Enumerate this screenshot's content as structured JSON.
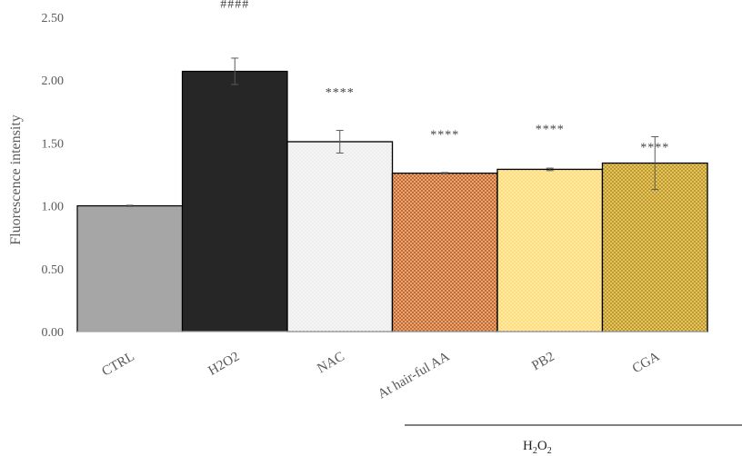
{
  "chart_data": {
    "type": "bar",
    "title": "",
    "xlabel": "",
    "ylabel": "Fluorescence intensity",
    "ylim": [
      0,
      2.5
    ],
    "yticks": [
      "0.00",
      "0.50",
      "1.00",
      "1.50",
      "2.00",
      "2.50"
    ],
    "categories": [
      "CTRL",
      "H2O2",
      "NAC",
      "At hair-ful AA",
      "PB2",
      "CGA"
    ],
    "values": [
      1.0,
      2.07,
      1.51,
      1.26,
      1.29,
      1.34
    ],
    "errors": [
      0.005,
      0.105,
      0.09,
      0.005,
      0.01,
      0.21
    ],
    "significance": [
      "",
      "####",
      "****",
      "****",
      "****",
      "****"
    ],
    "colors": [
      "#a6a6a6",
      "#262626",
      "#ececec",
      "#c55a11",
      "#ffd966",
      "#bf9000"
    ],
    "patterned": [
      false,
      false,
      true,
      true,
      true,
      true
    ],
    "grid": false,
    "group_label": "H",
    "group_label_sub1": "2",
    "group_label_mid": "O",
    "group_label_sub2": "2"
  }
}
